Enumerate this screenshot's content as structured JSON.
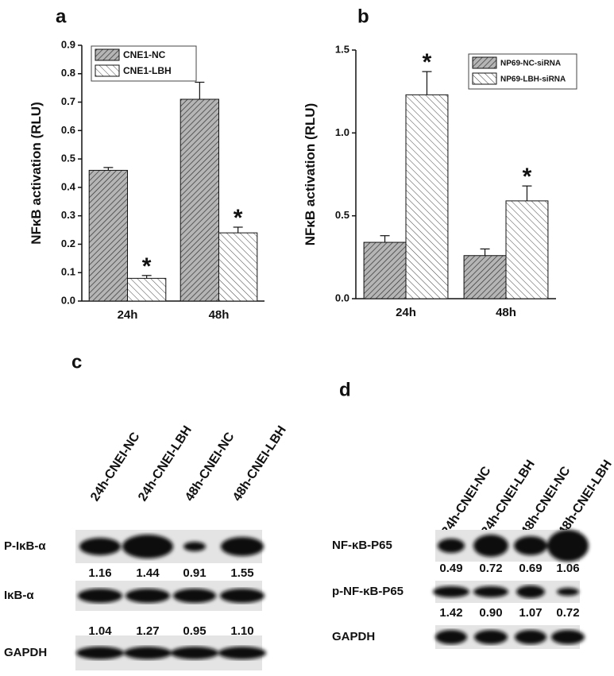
{
  "chart_data": [
    {
      "type": "bar",
      "label": "a",
      "ylabel": "NFκB activation (RLU)",
      "categories": [
        "24h",
        "48h"
      ],
      "series": [
        {
          "name": "CNE1-NC",
          "color": "#9a9a9a",
          "values": [
            0.46,
            0.71
          ],
          "errors": [
            0.01,
            0.06
          ]
        },
        {
          "name": "CNE1-LBH",
          "color": "#ffffff",
          "values": [
            0.08,
            0.24
          ],
          "errors": [
            0.01,
            0.02
          ],
          "annotations": [
            "*",
            "*"
          ]
        }
      ],
      "ylim": [
        0,
        0.9
      ],
      "yticks": [
        {
          "value": 0,
          "label": "0.0"
        },
        0.1,
        0.2,
        0.3,
        0.4,
        0.5,
        0.6,
        0.7,
        0.8,
        0.9
      ]
    },
    {
      "type": "bar",
      "label": "b",
      "ylabel": "NFκB activation (RLU)",
      "categories": [
        "24h",
        "48h"
      ],
      "series": [
        {
          "name": "NP69-NC-siRNA",
          "color": "#9a9a9a",
          "values": [
            0.34,
            0.26
          ],
          "errors": [
            0.04,
            0.04
          ]
        },
        {
          "name": "NP69-LBH-siRNA",
          "color": "#ffffff",
          "values": [
            1.23,
            0.59
          ],
          "errors": [
            0.14,
            0.09
          ],
          "annotations": [
            "*",
            "*"
          ]
        }
      ],
      "ylim": [
        0,
        1.5
      ],
      "yticks": [
        {
          "value": 0,
          "label": "0.0"
        },
        0.5,
        {
          "value": 1,
          "label": "1.0"
        },
        1.5
      ]
    }
  ],
  "blots": [
    {
      "label": "c",
      "lanes": [
        "24h-CNEI-NC",
        "24h-CNEI-LBH",
        "48h-CNEI-NC",
        "48h-CNEI-LBH"
      ],
      "rows": [
        {
          "name": "P-IκB-α",
          "quant": [
            "1.16",
            "1.44",
            "0.91",
            "1.55"
          ]
        },
        {
          "name": "IκB-α",
          "quant": [
            "1.04",
            "1.27",
            "0.95",
            "1.10"
          ]
        },
        {
          "name": "GAPDH"
        }
      ]
    },
    {
      "label": "d",
      "lanes": [
        "24h-CNEI-NC",
        "24h-CNEI-LBH",
        "48h-CNEI-NC",
        "48h-CNEI-LBH"
      ],
      "rows": [
        {
          "name": "NF-κB-P65",
          "quant": [
            "0.49",
            "0.72",
            "0.69",
            "1.06"
          ]
        },
        {
          "name": "p-NF-κB-P65",
          "quant": [
            "1.42",
            "0.90",
            "1.07",
            "0.72"
          ]
        },
        {
          "name": "GAPDH"
        }
      ]
    }
  ]
}
